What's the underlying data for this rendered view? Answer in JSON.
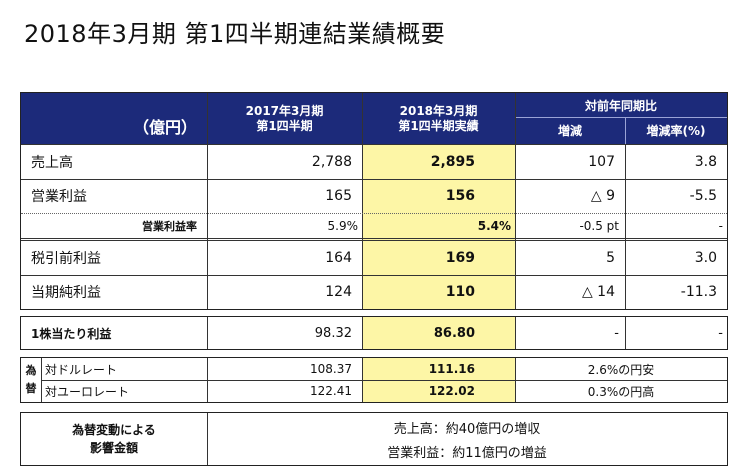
{
  "title": "2018年3月期 第1四半期連結業績概要",
  "header": {
    "unit": "（億円）",
    "col_prev_l1": "2017年3月期",
    "col_prev_l2": "第1四半期",
    "col_curr_l1": "2018年3月期",
    "col_curr_l2": "第1四半期実績",
    "col_yoy": "対前年同期比",
    "col_change": "増減",
    "col_rate": "増減率(%)"
  },
  "rows": {
    "sales": {
      "label": "売上高",
      "prev": "2,788",
      "curr": "2,895",
      "change": "107",
      "rate": "3.8"
    },
    "op_income": {
      "label": "営業利益",
      "prev": "165",
      "curr": "156",
      "change": "△ 9",
      "rate": "-5.5"
    },
    "op_margin": {
      "label": "営業利益率",
      "prev": "5.9%",
      "curr": "5.4%",
      "change": "-0.5 pt",
      "rate": "-"
    },
    "pretax": {
      "label": "税引前利益",
      "prev": "164",
      "curr": "169",
      "change": "5",
      "rate": "3.0"
    },
    "net": {
      "label": "当期純利益",
      "prev": "124",
      "curr": "110",
      "change": "△ 14",
      "rate": "-11.3"
    }
  },
  "eps": {
    "label": "1株当たり利益",
    "prev": "98.32",
    "curr": "86.80",
    "change": "-",
    "rate": "-"
  },
  "fx": {
    "side_top": "為",
    "side_bottom": "替",
    "usd": {
      "label": "対ドルレート",
      "prev": "108.37",
      "curr": "111.16",
      "note": "2.6%の円安"
    },
    "eur": {
      "label": "対ユーロレート",
      "prev": "122.41",
      "curr": "122.02",
      "note": "0.3%の円高"
    }
  },
  "impact": {
    "label_l1": "為替変動による",
    "label_l2": "影響金額",
    "line1": "売上高：約40億円の増収",
    "line2": "営業利益：約11億円の増益"
  }
}
